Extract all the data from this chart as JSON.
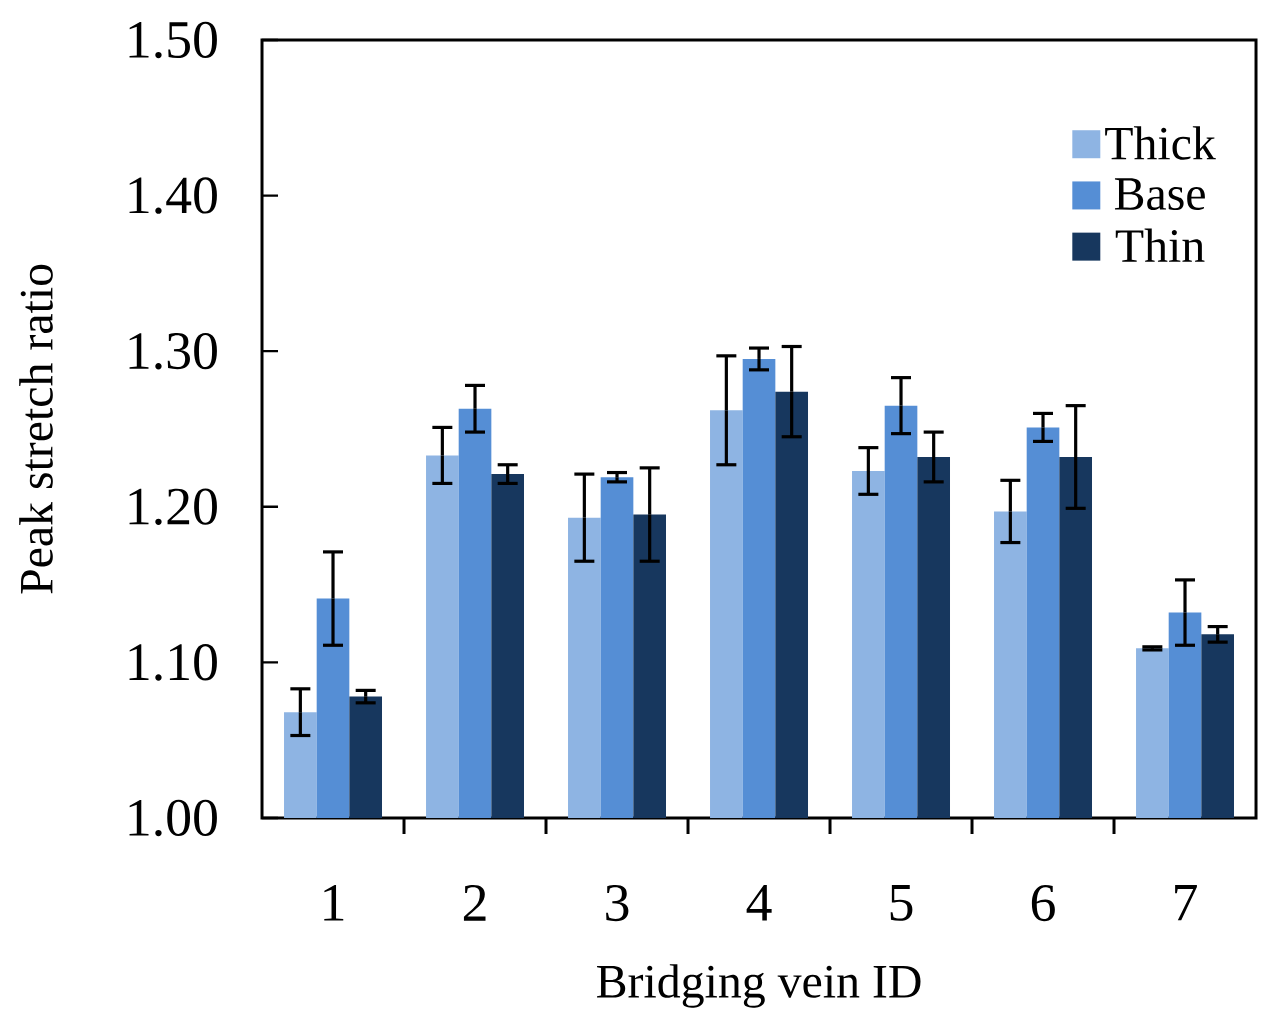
{
  "chart_data": {
    "type": "bar",
    "xlabel": "Bridging vein ID",
    "ylabel": "Peak stretch ratio",
    "categories": [
      "1",
      "2",
      "3",
      "4",
      "5",
      "6",
      "7"
    ],
    "series": [
      {
        "name": "Thick",
        "color": "#8eb4e3",
        "values": [
          1.068,
          1.233,
          1.193,
          1.262,
          1.223,
          1.197,
          1.109
        ],
        "errors": [
          0.015,
          0.018,
          0.028,
          0.035,
          0.015,
          0.02,
          0.001
        ]
      },
      {
        "name": "Base",
        "color": "#558ed5",
        "values": [
          1.141,
          1.263,
          1.219,
          1.295,
          1.265,
          1.251,
          1.132
        ],
        "errors": [
          0.03,
          0.015,
          0.003,
          0.007,
          0.018,
          0.009,
          0.021
        ]
      },
      {
        "name": "Thin",
        "color": "#17375e",
        "values": [
          1.078,
          1.221,
          1.195,
          1.274,
          1.232,
          1.232,
          1.118
        ],
        "errors": [
          0.004,
          0.006,
          0.03,
          0.029,
          0.016,
          0.033,
          0.005
        ]
      }
    ],
    "ylim": [
      1.0,
      1.5
    ],
    "yticks": [
      {
        "value": 1.0,
        "label": "1.00"
      },
      {
        "value": 1.1,
        "label": "1.10"
      },
      {
        "value": 1.2,
        "label": "1.20"
      },
      {
        "value": 1.3,
        "label": "1.30"
      },
      {
        "value": 1.4,
        "label": "1.40"
      },
      {
        "value": 1.5,
        "label": "1.50"
      }
    ],
    "grid": false,
    "legend": "top right"
  }
}
